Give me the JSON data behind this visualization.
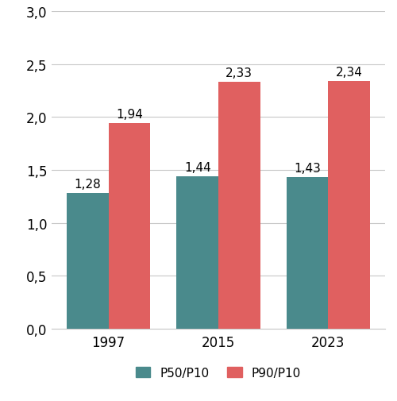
{
  "years": [
    "1997",
    "2015",
    "2023"
  ],
  "p50_p10": [
    1.28,
    1.44,
    1.43
  ],
  "p90_p10": [
    1.94,
    2.33,
    2.34
  ],
  "p50_color": "#4a8a8c",
  "p90_color": "#e06060",
  "ylim": [
    0,
    3.0
  ],
  "yticks": [
    0.0,
    0.5,
    1.0,
    1.5,
    2.0,
    2.5,
    3.0
  ],
  "ytick_labels": [
    "0,0",
    "0,5",
    "1,0",
    "1,5",
    "2,0",
    "2,5",
    "3,0"
  ],
  "bar_width": 0.38,
  "legend_labels": [
    "P50/P10",
    "P90/P10"
  ],
  "tick_fontsize": 12,
  "legend_fontsize": 11,
  "annotation_fontsize": 11,
  "background_color": "#ffffff",
  "grid_color": "#c8c8c8"
}
